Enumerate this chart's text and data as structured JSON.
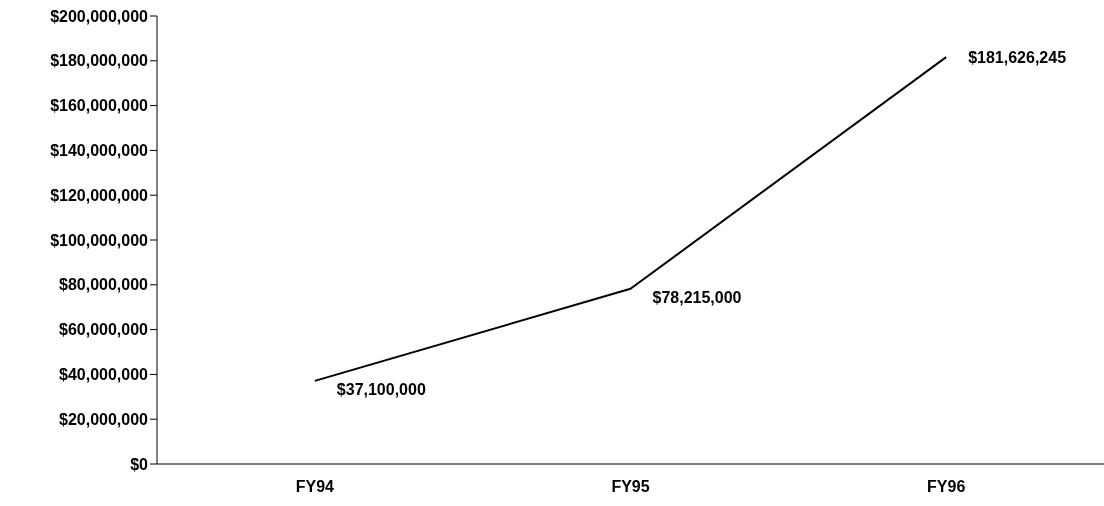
{
  "chart_data": {
    "type": "line",
    "categories": [
      "FY94",
      "FY95",
      "FY96"
    ],
    "series": [
      {
        "color": "#000000",
        "values": [
          37100000,
          78215000,
          181626245
        ],
        "value_labels": [
          "$37,100,000",
          "$78,215,000",
          "$181,626,245"
        ]
      }
    ],
    "ylim": [
      0,
      200000000
    ],
    "yticks": [
      {
        "value": 0,
        "label": "$0"
      },
      {
        "value": 20000000,
        "label": "$20,000,000"
      },
      {
        "value": 40000000,
        "label": "$40,000,000"
      },
      {
        "value": 60000000,
        "label": "$60,000,000"
      },
      {
        "value": 80000000,
        "label": "$80,000,000"
      },
      {
        "value": 100000000,
        "label": "$100,000,000"
      },
      {
        "value": 120000000,
        "label": "$120,000,000"
      },
      {
        "value": 140000000,
        "label": "$140,000,000"
      },
      {
        "value": 160000000,
        "label": "$160,000,000"
      },
      {
        "value": 180000000,
        "label": "$180,000,000"
      },
      {
        "value": 200000000,
        "label": "$200,000,000"
      }
    ],
    "grid": false,
    "legend": false,
    "marker": "none",
    "line_style": "solid"
  }
}
